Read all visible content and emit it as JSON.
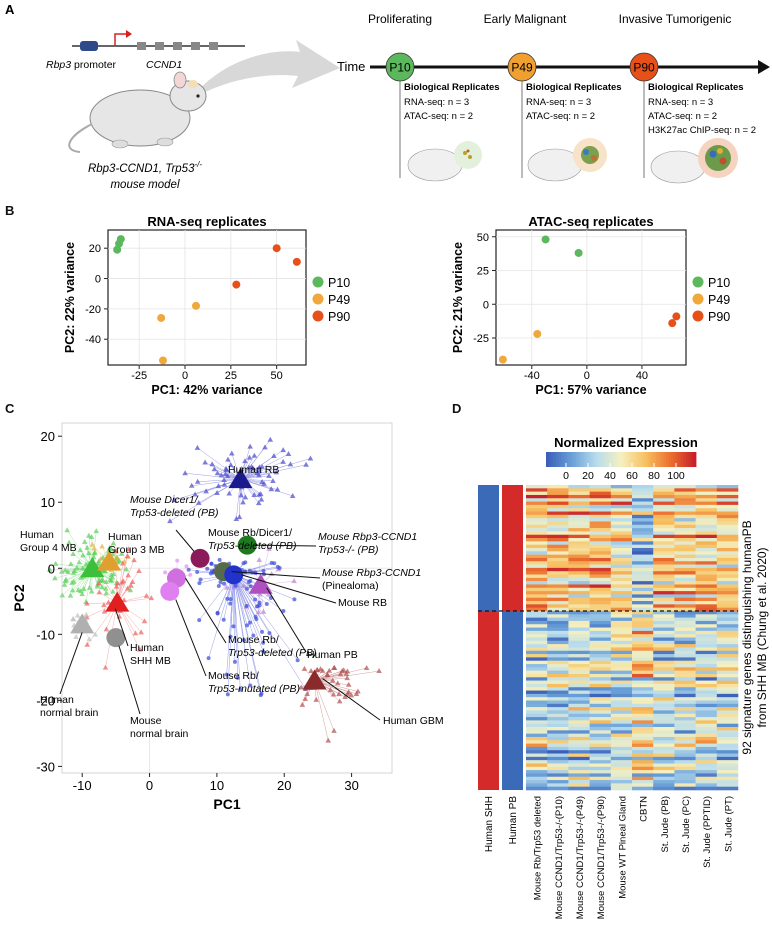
{
  "panels": {
    "a": "A",
    "b": "B",
    "c": "C",
    "d": "D"
  },
  "panel_a": {
    "promoter_label": "Rbp3",
    "promoter_suffix": " promoter",
    "gene_label": "CCND1",
    "model_line1": "Rbp3-CCND1, Trp53",
    "model_sup": "-/-",
    "model_line2": "mouse model",
    "time_label": "Time",
    "stages": [
      {
        "title": "Proliferating",
        "tp": "P10",
        "color": "#5cb85c",
        "rep_title": "Biological Replicates",
        "lines": [
          "RNA-seq:  n = 3",
          "ATAC-seq: n = 2"
        ]
      },
      {
        "title": "Early Malignant",
        "tp": "P49",
        "color": "#f0a030",
        "rep_title": "Biological Replicates",
        "lines": [
          "RNA-seq:  n = 3",
          "ATAC-seq:  n = 2"
        ]
      },
      {
        "title": "Invasive Tumorigenic",
        "tp": "P90",
        "color": "#e8501a",
        "rep_title": "Biological Replicates",
        "lines": [
          "RNA-seq:  n = 3",
          "ATAC-seq:  n = 2",
          "H3K27ac ChIP-seq:  n = 2"
        ]
      }
    ]
  },
  "chart_data": [
    {
      "id": "rna_pca",
      "type": "scatter",
      "title": "RNA-seq replicates",
      "xlabel": "PC1: 42% variance",
      "ylabel": "PC2: 22% variance",
      "xlim": [
        -42,
        66
      ],
      "ylim": [
        -57,
        32
      ],
      "xticks": [
        -25,
        0,
        25,
        50
      ],
      "yticks": [
        -40,
        -20,
        0,
        20
      ],
      "xtick_labels": [
        "-25",
        "0",
        "25",
        "50"
      ],
      "ytick_labels": [
        "-40",
        "-20",
        "0",
        "20"
      ],
      "legend": [
        "P10",
        "P49",
        "P90"
      ],
      "colors": {
        "P10": "#5cb85c",
        "P49": "#f0a83c",
        "P90": "#e8501a"
      },
      "points": [
        {
          "x": -35,
          "y": 26,
          "g": "P10"
        },
        {
          "x": -36,
          "y": 23,
          "g": "P10"
        },
        {
          "x": -37,
          "y": 19,
          "g": "P10"
        },
        {
          "x": 6,
          "y": -18,
          "g": "P49"
        },
        {
          "x": -13,
          "y": -26,
          "g": "P49"
        },
        {
          "x": -12,
          "y": -54,
          "g": "P49"
        },
        {
          "x": 28,
          "y": -4,
          "g": "P90"
        },
        {
          "x": 50,
          "y": 20,
          "g": "P90"
        },
        {
          "x": 61,
          "y": 11,
          "g": "P90"
        }
      ]
    },
    {
      "id": "atac_pca",
      "type": "scatter",
      "title": "ATAC-seq replicates",
      "xlabel": "PC1: 57% variance",
      "ylabel": "PC2: 21% variance",
      "xlim": [
        -66,
        72
      ],
      "ylim": [
        -45,
        55
      ],
      "xticks": [
        -40,
        0,
        40
      ],
      "yticks": [
        -25,
        0,
        25,
        50
      ],
      "xtick_labels": [
        "-40",
        "0",
        "40"
      ],
      "ytick_labels": [
        "-25",
        "0",
        "25",
        "50"
      ],
      "legend": [
        "P10",
        "P49",
        "P90"
      ],
      "colors": {
        "P10": "#5cb85c",
        "P49": "#f0a83c",
        "P90": "#e8501a"
      },
      "points": [
        {
          "x": -30,
          "y": 48,
          "g": "P10"
        },
        {
          "x": -6,
          "y": 38,
          "g": "P10"
        },
        {
          "x": -36,
          "y": -22,
          "g": "P49"
        },
        {
          "x": -61,
          "y": -41,
          "g": "P49"
        },
        {
          "x": 65,
          "y": -9,
          "g": "P90"
        },
        {
          "x": 62,
          "y": -14,
          "g": "P90"
        }
      ]
    },
    {
      "id": "c_pca",
      "type": "scatter",
      "xlabel": "PC1",
      "ylabel": "PC2",
      "xlim": [
        -13,
        36
      ],
      "ylim": [
        -31,
        22
      ],
      "xticks": [
        -10,
        0,
        10,
        20,
        30
      ],
      "yticks": [
        -30,
        -20,
        -10,
        0,
        10,
        20
      ],
      "xtick_labels": [
        "-10",
        "0",
        "10",
        "20",
        "30"
      ],
      "ytick_labels": [
        "-30",
        "-20",
        "-10",
        "0",
        "10",
        "20"
      ],
      "centroids": [
        {
          "name": "Human RB",
          "x": 13.5,
          "y": 13.5,
          "shape": "triangle",
          "color": "#1a1a8c"
        },
        {
          "name": "Human Group 4 MB",
          "x": -8.5,
          "y": 0,
          "shape": "triangle",
          "color": "#3cc03c"
        },
        {
          "name": "Human Group 3 MB",
          "x": -6,
          "y": 1,
          "shape": "triangle",
          "color": "#e0a030"
        },
        {
          "name": "Human SHH MB",
          "x": -4.8,
          "y": -5.2,
          "shape": "triangle",
          "color": "#e02020"
        },
        {
          "name": "Human normal brain",
          "x": -10,
          "y": -8.5,
          "shape": "triangle",
          "color": "#b0b0b0"
        },
        {
          "name": "Human PB",
          "x": 16.5,
          "y": -2.5,
          "shape": "triangle",
          "color": "#b050c0"
        },
        {
          "name": "Human GBM",
          "x": 24.5,
          "y": -17,
          "shape": "triangle",
          "color": "#8b2a2a"
        },
        {
          "name": "Mouse Dicer1 Trp53-deleted (PB)",
          "x": 7.5,
          "y": 1.5,
          "shape": "circle",
          "color": "#8b1a5a"
        },
        {
          "name": "Mouse Rbp3-CCND1 Trp53-/- (PB)",
          "x": 14.5,
          "y": 3.5,
          "shape": "circle",
          "color": "#1e7a1e"
        },
        {
          "name": "Mouse Rbp3-CCND1 (Pinealoma)",
          "x": 11,
          "y": -0.5,
          "shape": "circle",
          "color": "#556b4a"
        },
        {
          "name": "Mouse RB",
          "x": 12.5,
          "y": -1,
          "shape": "circle",
          "color": "#2233cc"
        },
        {
          "name": "Mouse Rb/Trp53-deleted (PB)",
          "x": 4,
          "y": -1.5,
          "shape": "circle",
          "color": "#d070e0"
        },
        {
          "name": "Mouse Rb/Trp53-mutated (PB)",
          "x": 3,
          "y": -3.5,
          "shape": "circle",
          "color": "#e080f0"
        },
        {
          "name": "Mouse normal brain",
          "x": -5,
          "y": -10.5,
          "shape": "circle",
          "color": "#909090"
        }
      ],
      "labels": {
        "human_rb": "Human RB",
        "human_g4": [
          "Human",
          "Group 4 MB"
        ],
        "human_g3": [
          "Human",
          "Group 3 MB"
        ],
        "human_shh": [
          "Human",
          "SHH MB"
        ],
        "human_nb": [
          "Human",
          "normal brain"
        ],
        "human_pb": "Human PB",
        "human_gbm": "Human GBM",
        "mouse_dicer": [
          "Mouse Dicer1/",
          "Trp53-deleted (PB)"
        ],
        "mouse_rb_dicer": [
          "Mouse Rb/Dicer1/",
          "Trp53-deleted (PB)"
        ],
        "mouse_rbp3_trp53": [
          "Mouse Rbp3-CCND1",
          "Trp53-/- (PB)"
        ],
        "mouse_rbp3_pin": [
          "Mouse Rbp3-CCND1",
          "(Pinealoma)"
        ],
        "mouse_rb": "Mouse RB",
        "mouse_rb_trp53_del": [
          "Mouse Rb/",
          "Trp53-deleted (PB)"
        ],
        "mouse_rb_trp53_mut": [
          "Mouse Rb/",
          "Trp53-mutated (PB)"
        ],
        "mouse_nb": [
          "Mouse",
          "normal brain"
        ]
      }
    },
    {
      "id": "heatmap",
      "type": "heatmap",
      "title": "Normalized Expression",
      "scale_ticks": [
        0,
        20,
        40,
        60,
        80,
        100
      ],
      "scale_labels": [
        "0",
        "20",
        "40",
        "60",
        "80",
        "100"
      ],
      "ylabel": [
        "92 signature genes distinguishing humanPB",
        "from SHH MB (Chung et al. 2020)"
      ],
      "human_columns": [
        "Human SHH",
        "Human PB"
      ],
      "columns": [
        "Mouse Rb/Trp53 deleted",
        "Mouse CCND1/Trp53-/-(P10)",
        "Mouse CCND1/Trp53-/-(P49)",
        "Mouse CCND1/Trp53-/-(P90)",
        "Mouse WT Pineal Gland",
        "CBTN",
        "St. Jude (PB)",
        "St. Jude (PC)",
        "St. Jude (PPTID)",
        "St. Jude (PT)"
      ],
      "split_row": 38,
      "n_rows": 92
    }
  ]
}
